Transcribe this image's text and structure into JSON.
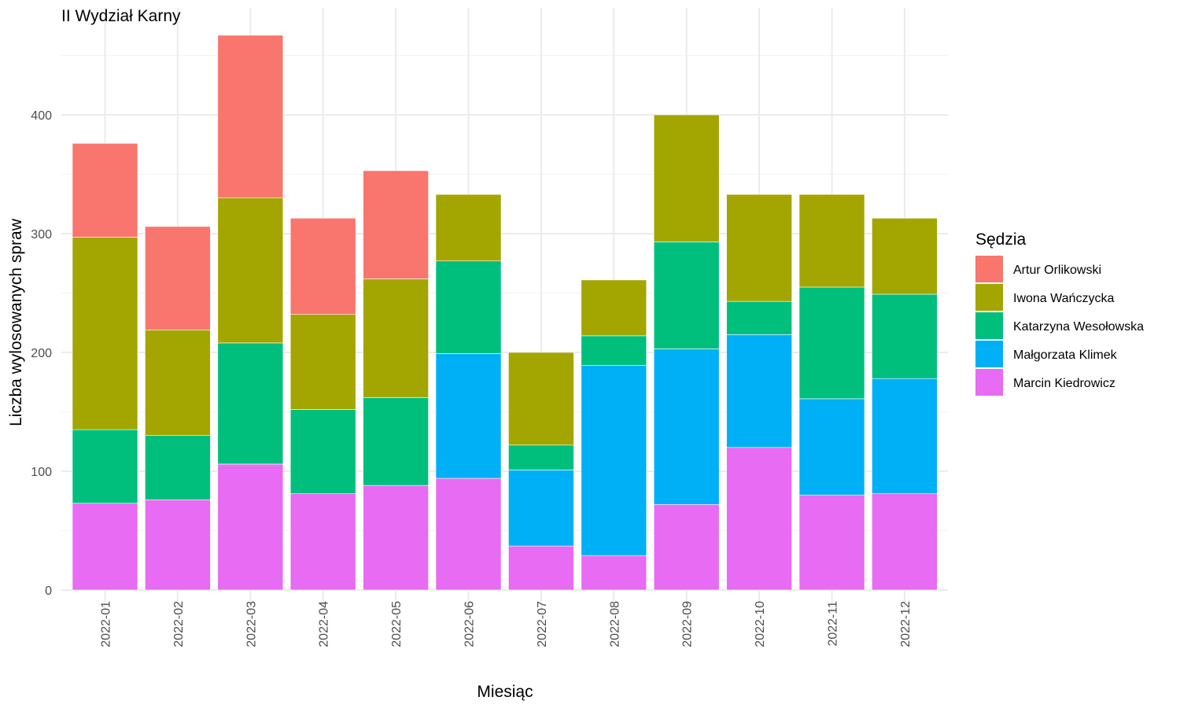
{
  "chart_data": {
    "type": "bar",
    "stacked": true,
    "title": "II Wydział Karny",
    "xlabel": "Miesiąc",
    "ylabel": "Liczba wylosowanych spraw",
    "ylim": [
      0,
      470
    ],
    "yticks": [
      0,
      100,
      200,
      300,
      400
    ],
    "grid": true,
    "legend": {
      "title": "Sędzia",
      "position": "right"
    },
    "categories": [
      "2022-01",
      "2022-02",
      "2022-03",
      "2022-04",
      "2022-05",
      "2022-06",
      "2022-07",
      "2022-08",
      "2022-09",
      "2022-10",
      "2022-11",
      "2022-12"
    ],
    "series": [
      {
        "name": "Marcin Kiedrowicz",
        "color": "#E76BF3",
        "values": [
          73,
          76,
          106,
          81,
          88,
          94,
          37,
          29,
          72,
          120,
          80,
          81
        ]
      },
      {
        "name": "Małgorzata Klimek",
        "color": "#00B0F6",
        "values": [
          0,
          0,
          0,
          0,
          0,
          105,
          64,
          160,
          131,
          95,
          81,
          97
        ]
      },
      {
        "name": "Katarzyna Wesołowska",
        "color": "#00BF7D",
        "values": [
          62,
          54,
          102,
          71,
          74,
          78,
          21,
          25,
          90,
          28,
          94,
          71
        ]
      },
      {
        "name": "Iwona Wańczycka",
        "color": "#A3A500",
        "values": [
          162,
          89,
          122,
          80,
          100,
          56,
          78,
          47,
          107,
          90,
          78,
          64
        ]
      },
      {
        "name": "Artur Orlikowski",
        "color": "#F8766D",
        "values": [
          79,
          87,
          137,
          81,
          91,
          0,
          0,
          0,
          0,
          0,
          0,
          0
        ]
      }
    ],
    "legend_order": [
      "Artur Orlikowski",
      "Iwona Wańczycka",
      "Katarzyna Wesołowska",
      "Małgorzata Klimek",
      "Marcin Kiedrowicz"
    ]
  }
}
